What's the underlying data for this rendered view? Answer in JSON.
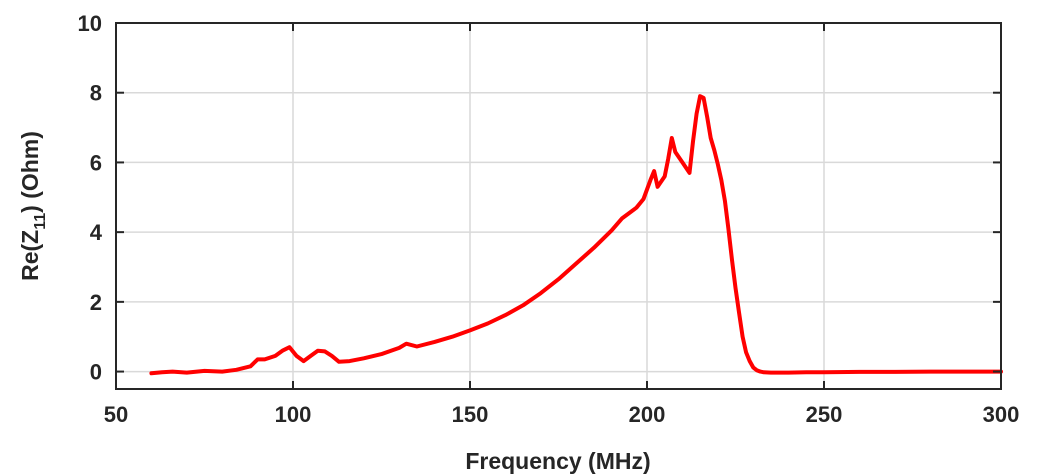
{
  "chart_data": {
    "type": "line",
    "title": "",
    "xlabel": "Frequency (MHz)",
    "ylabel": {
      "prefix": "Re(Z",
      "subscript": "11",
      "suffix": ") (Ohm)"
    },
    "xlim": [
      50,
      300
    ],
    "ylim": [
      -0.5,
      10
    ],
    "xticks": [
      50,
      100,
      150,
      200,
      250,
      300
    ],
    "yticks": [
      0,
      2,
      4,
      6,
      8,
      10
    ],
    "grid": true,
    "legend": "none",
    "colors": {
      "series": "#ff0000",
      "grid": "#d9d9d9",
      "axis": "#262626"
    },
    "series": [
      {
        "x": [
          60,
          63,
          66,
          70,
          75,
          80,
          84,
          88,
          90,
          92,
          95,
          97,
          99,
          101,
          103,
          105,
          107,
          109,
          111,
          113,
          116,
          120,
          125,
          130,
          132,
          135,
          140,
          145,
          150,
          155,
          160,
          165,
          170,
          175,
          180,
          185,
          190,
          193,
          195,
          197,
          199,
          201,
          202,
          203,
          205,
          206,
          207,
          208,
          210,
          212,
          213,
          214,
          215,
          216,
          217,
          218,
          219,
          220,
          221,
          222,
          223,
          224,
          225,
          226,
          227,
          228,
          229,
          230,
          231,
          232,
          233,
          235,
          238,
          240,
          245,
          250,
          260,
          270,
          280,
          290,
          300
        ],
        "y": [
          -0.05,
          -0.02,
          0.0,
          -0.03,
          0.02,
          0.0,
          0.05,
          0.15,
          0.35,
          0.35,
          0.45,
          0.6,
          0.7,
          0.45,
          0.3,
          0.45,
          0.6,
          0.58,
          0.45,
          0.28,
          0.3,
          0.38,
          0.5,
          0.68,
          0.8,
          0.72,
          0.85,
          1.0,
          1.18,
          1.38,
          1.62,
          1.9,
          2.25,
          2.65,
          3.1,
          3.55,
          4.05,
          4.4,
          4.55,
          4.7,
          4.95,
          5.5,
          5.75,
          5.3,
          5.6,
          6.1,
          6.7,
          6.3,
          6.0,
          5.7,
          6.6,
          7.4,
          7.9,
          7.85,
          7.3,
          6.7,
          6.35,
          5.95,
          5.5,
          4.9,
          4.1,
          3.2,
          2.4,
          1.7,
          1.0,
          0.55,
          0.3,
          0.12,
          0.04,
          0.0,
          -0.02,
          -0.03,
          -0.03,
          -0.03,
          -0.02,
          -0.02,
          -0.01,
          -0.01,
          0.0,
          0.0,
          0.0
        ]
      }
    ]
  }
}
